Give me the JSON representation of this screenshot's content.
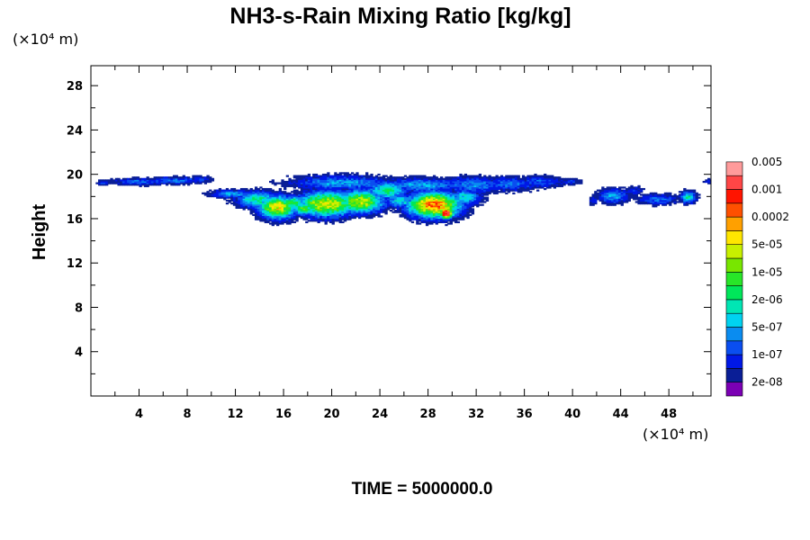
{
  "chart_data": {
    "type": "heatmap",
    "title": "NH3-s-Rain Mixing Ratio [kg/kg]",
    "x_unit": "(×10⁴ m)",
    "y_unit": "(×10⁴ m)",
    "ylabel": "Height",
    "xlabel": "",
    "footer": "TIME = 5000000.0",
    "xlim": [
      0,
      51.5
    ],
    "ylim": [
      0,
      29.8
    ],
    "xticks": [
      4,
      8,
      12,
      16,
      20,
      24,
      28,
      32,
      36,
      40,
      44,
      48
    ],
    "xtick_labels": [
      "4",
      "8",
      "12",
      "16",
      "20",
      "24",
      "28",
      "32",
      "36",
      "40",
      "44",
      "48"
    ],
    "yticks": [
      4,
      8,
      12,
      16,
      20,
      24,
      28
    ],
    "ytick_labels": [
      "4",
      "8",
      "12",
      "16",
      "20",
      "24",
      "28"
    ],
    "colorbar": {
      "colors": [
        "#7b00b4",
        "#0a1e96",
        "#0018e6",
        "#0a4ef0",
        "#0a8cf0",
        "#00d2f0",
        "#00e6b4",
        "#00e65a",
        "#28e628",
        "#78e600",
        "#c8f000",
        "#ffe600",
        "#ffa000",
        "#ff5000",
        "#ff1400",
        "#ff4646",
        "#ff9b9b"
      ],
      "tick_labels": [
        "2e-08",
        "1e-07",
        "5e-07",
        "2e-06",
        "1e-05",
        "5e-05",
        "0.0002",
        "0.001",
        "0.005"
      ]
    },
    "regions": [
      {
        "x": [
          0,
          10
        ],
        "y": [
          18.5,
          20
        ],
        "level": 2,
        "note": "thin band at cloud top, left"
      },
      {
        "x": [
          9,
          41
        ],
        "y": [
          17,
          20
        ],
        "level": 3,
        "note": "main cloud envelope"
      },
      {
        "x": [
          12,
          31
        ],
        "y": [
          15.8,
          19
        ],
        "level": 5,
        "note": "dense lower cloud"
      },
      {
        "x": [
          14,
          17
        ],
        "y": [
          16.2,
          18
        ],
        "level": 9,
        "note": "core near x=15"
      },
      {
        "x": [
          18,
          24
        ],
        "y": [
          16.2,
          18.5
        ],
        "level": 11,
        "note": "core near x=20"
      },
      {
        "x": [
          26,
          30
        ],
        "y": [
          16.2,
          18.2
        ],
        "level": 13,
        "note": "core near x=28"
      },
      {
        "x": [
          29,
          30
        ],
        "y": [
          16.3,
          17
        ],
        "level": 15,
        "note": "maximum near x=29.5"
      },
      {
        "x": [
          41,
          51
        ],
        "y": [
          17,
          19
        ],
        "level": 3,
        "note": "scattered cells right"
      }
    ]
  }
}
